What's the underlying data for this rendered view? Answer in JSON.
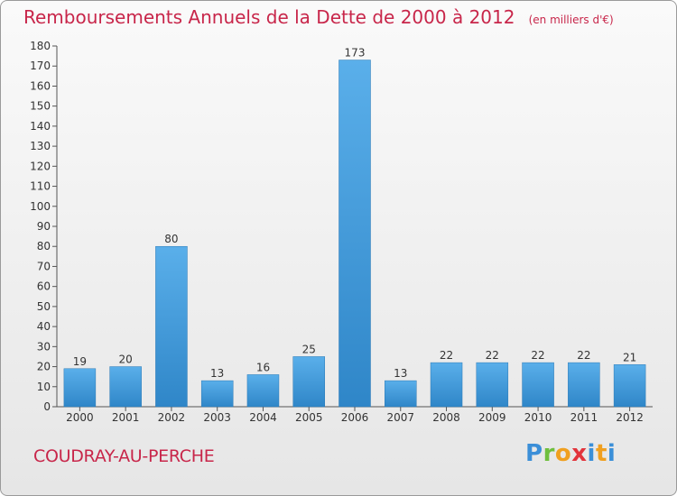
{
  "header": {
    "title": "Remboursements Annuels de la Dette de 2000 à 2012",
    "unit": "(en milliers d'€)"
  },
  "footer": {
    "commune": "COUDRAY-AU-PERCHE",
    "logo_text": "Proxiti"
  },
  "colors": {
    "title": "#c8264a",
    "bar_light": "#5aafea",
    "bar_dark": "#2f86c8"
  },
  "chart_data": {
    "type": "bar",
    "title": "Remboursements Annuels de la Dette de 2000 à 2012",
    "subtitle": "(en milliers d'€)",
    "xlabel": "",
    "ylabel": "",
    "categories": [
      "2000",
      "2001",
      "2002",
      "2003",
      "2004",
      "2005",
      "2006",
      "2007",
      "2008",
      "2009",
      "2010",
      "2011",
      "2012"
    ],
    "values": [
      19,
      20,
      80,
      13,
      16,
      25,
      173,
      13,
      22,
      22,
      22,
      22,
      21
    ],
    "ylim": [
      0,
      180
    ],
    "yticks": [
      0,
      10,
      20,
      30,
      40,
      50,
      60,
      70,
      80,
      90,
      100,
      110,
      120,
      130,
      140,
      150,
      160,
      170,
      180
    ],
    "grid": false,
    "legend": "none"
  }
}
